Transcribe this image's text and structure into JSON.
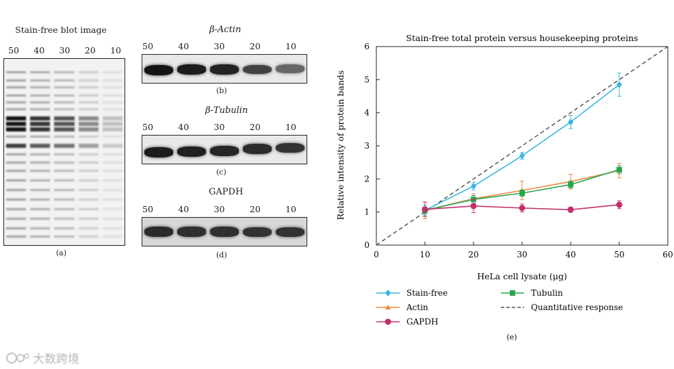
{
  "panel_a": {
    "title": "Stain-free blot image",
    "lanes": [
      "50",
      "40",
      "30",
      "20",
      "10"
    ],
    "caption": "(a)"
  },
  "panel_b": {
    "title": "β-Actin",
    "lanes": [
      "50",
      "40",
      "30",
      "20",
      "10"
    ],
    "caption": "(b)",
    "band_strength": [
      1.0,
      0.95,
      0.9,
      0.7,
      0.45
    ]
  },
  "panel_c": {
    "title": "β-Tubulin",
    "lanes": [
      "50",
      "40",
      "30",
      "20",
      "10"
    ],
    "caption": "(c)",
    "band_strength": [
      0.95,
      0.92,
      0.88,
      0.85,
      0.8
    ]
  },
  "panel_d": {
    "title": "GAPDH",
    "lanes": [
      "50",
      "40",
      "30",
      "20",
      "10"
    ],
    "caption": "(d)",
    "band_strength": [
      0.85,
      0.82,
      0.82,
      0.8,
      0.8
    ]
  },
  "chart_caption": "(e)",
  "watermark": "大数跨境",
  "colors": {
    "stain_free": "#38b6e0",
    "actin": "#f0883c",
    "tubulin": "#27a650",
    "gapdh": "#c0306a",
    "quantitative": "#555555"
  },
  "chart_data": {
    "type": "line",
    "title": "Stain-free total protein versus housekeeping proteins",
    "xlabel": "HeLa cell lysate (μg)",
    "ylabel": "Relative intensity of protein bands",
    "xlim": [
      0,
      60
    ],
    "ylim": [
      0,
      6
    ],
    "xticks": [
      "0",
      "10",
      "20",
      "30",
      "40",
      "50",
      "60"
    ],
    "yticks": [
      "0",
      "1",
      "2",
      "3",
      "4",
      "5",
      "6"
    ],
    "x": [
      10,
      20,
      30,
      40,
      50
    ],
    "series": [
      {
        "name": "Stain-free",
        "values": [
          1.05,
          1.78,
          2.7,
          3.72,
          4.85
        ],
        "errors": [
          0.15,
          0.12,
          0.1,
          0.2,
          0.35
        ],
        "marker": "diamond",
        "color": "#38b6e0"
      },
      {
        "name": "Actin",
        "values": [
          1.05,
          1.4,
          1.65,
          1.92,
          2.25
        ],
        "errors": [
          0.25,
          0.15,
          0.28,
          0.22,
          0.22
        ],
        "marker": "triangle",
        "color": "#f0883c"
      },
      {
        "name": "Tubulin",
        "values": [
          1.05,
          1.38,
          1.57,
          1.83,
          2.28
        ],
        "errors": [
          0.1,
          0.12,
          0.1,
          0.1,
          0.12
        ],
        "marker": "square",
        "color": "#27a650"
      },
      {
        "name": "GAPDH",
        "values": [
          1.08,
          1.18,
          1.12,
          1.07,
          1.22
        ],
        "errors": [
          0.22,
          0.2,
          0.12,
          0.08,
          0.12
        ],
        "marker": "circle",
        "color": "#c0306a"
      }
    ],
    "reference_line": {
      "name": "Quantitative response",
      "from": [
        0,
        0
      ],
      "to": [
        60,
        6
      ],
      "style": "dashed"
    },
    "legend": {
      "placement": "below",
      "order": [
        "Stain-free",
        "Actin",
        "GAPDH",
        "Tubulin",
        "Quantitative response"
      ]
    },
    "grid": false
  }
}
